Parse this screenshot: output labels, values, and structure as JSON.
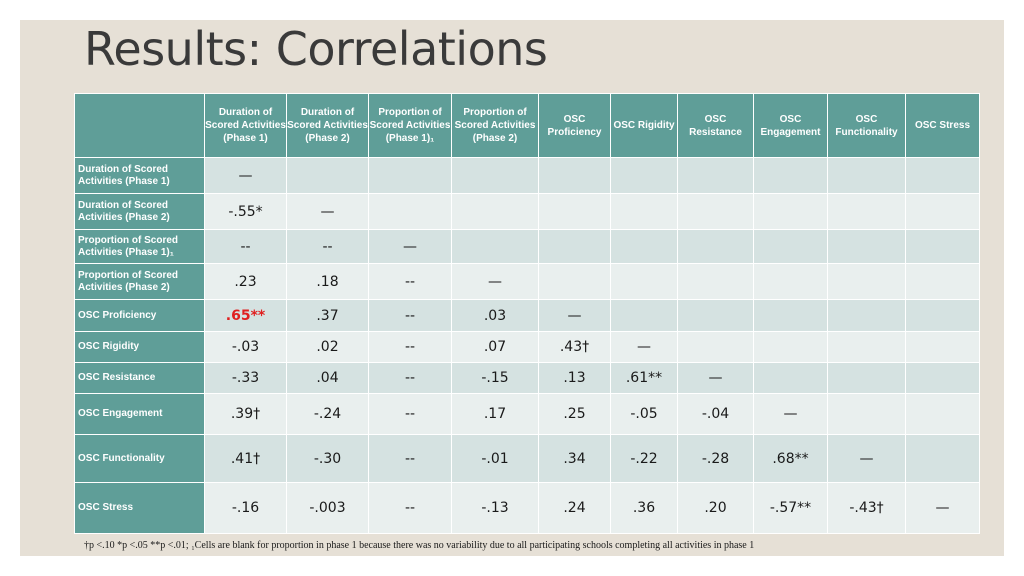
{
  "title": "Results: Correlations",
  "columns": [
    "Duration of Scored Activities (Phase 1)",
    "Duration of Scored Activities (Phase 2)",
    "Proportion of Scored Activities (Phase 1)₁",
    "Proportion of Scored Activities (Phase 2)",
    "OSC Proficiency",
    "OSC Rigidity",
    "OSC Resistance",
    "OSC Engagement",
    "OSC Functionality",
    "OSC Stress"
  ],
  "rows": [
    {
      "label": "Duration of Scored Activities (Phase 1)",
      "cells": [
        "—",
        "",
        "",
        "",
        "",
        "",
        "",
        "",
        "",
        ""
      ]
    },
    {
      "label": "Duration of Scored Activities (Phase 2)",
      "cells": [
        "-.55*",
        "—",
        "",
        "",
        "",
        "",
        "",
        "",
        "",
        ""
      ]
    },
    {
      "label": "Proportion of Scored Activities (Phase 1)₁",
      "cells": [
        "--",
        "--",
        "—",
        "",
        "",
        "",
        "",
        "",
        "",
        ""
      ]
    },
    {
      "label": "Proportion of Scored Activities (Phase 2)",
      "cells": [
        ".23",
        ".18",
        "--",
        "—",
        "",
        "",
        "",
        "",
        "",
        ""
      ]
    },
    {
      "label": "OSC Proficiency",
      "cells": [
        ".65**",
        ".37",
        "--",
        ".03",
        "—",
        "",
        "",
        "",
        "",
        ""
      ]
    },
    {
      "label": "OSC Rigidity",
      "cells": [
        "-.03",
        ".02",
        "--",
        ".07",
        ".43†",
        "—",
        "",
        "",
        "",
        ""
      ]
    },
    {
      "label": "OSC Resistance",
      "cells": [
        "-.33",
        ".04",
        "--",
        "-.15",
        ".13",
        ".61**",
        "—",
        "",
        "",
        ""
      ]
    },
    {
      "label": "OSC Engagement",
      "cells": [
        ".39†",
        "-.24",
        "--",
        ".17",
        ".25",
        "-.05",
        "-.04",
        "—",
        "",
        ""
      ]
    },
    {
      "label": "OSC Functionality",
      "cells": [
        ".41†",
        "-.30",
        "--",
        "-.01",
        ".34",
        "-.22",
        "-.28",
        ".68**",
        "—",
        ""
      ]
    },
    {
      "label": "OSC Stress",
      "cells": [
        "-.16",
        "-.003",
        "--",
        "-.13",
        ".24",
        ".36",
        ".20",
        "-.57**",
        "-.43†",
        "—"
      ]
    }
  ],
  "highlight": {
    "row": 4,
    "col": 0,
    "color": "#e02020"
  },
  "footnote": "†p <.10 *p <.05 **p <.01; ₁Cells are blank for proportion in phase 1 because there was no variability due to all participating schools completing all activities in phase 1",
  "colors": {
    "header": "#5f9e98",
    "row_dark": "#d5e2e1",
    "row_light": "#e9efee",
    "slide_bg": "#e6e0d6"
  }
}
